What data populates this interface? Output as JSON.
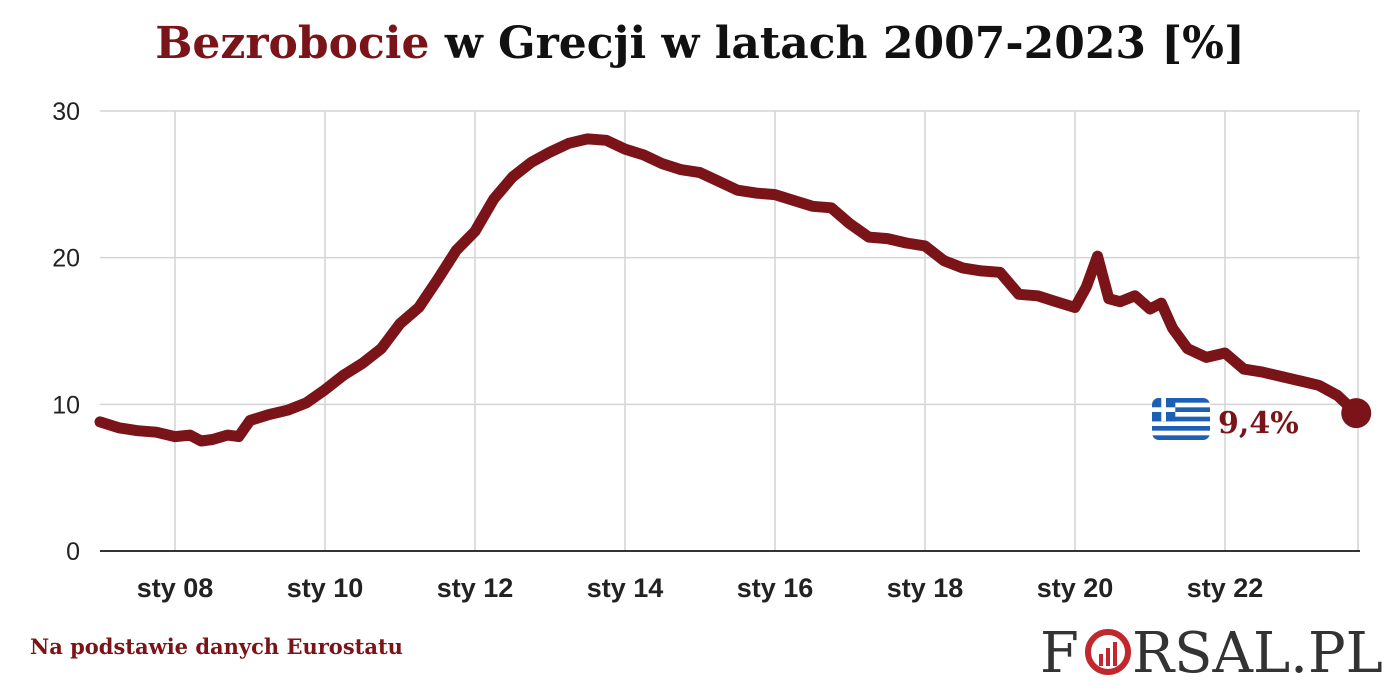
{
  "chart_data": {
    "type": "line",
    "title_accent": "Bezrobocie",
    "title_rest": " w Grecji w latach 2007-2023 [%]",
    "x_tick_labels": [
      "sty 08",
      "sty 10",
      "sty 12",
      "sty 14",
      "sty 16",
      "sty 18",
      "sty 20",
      "sty 22"
    ],
    "x_tick_years": [
      2008,
      2010,
      2012,
      2014,
      2016,
      2018,
      2020,
      2022
    ],
    "y_ticks": [
      0,
      10,
      20,
      30
    ],
    "xlim": [
      2007.0,
      2023.8
    ],
    "ylim": [
      0,
      30
    ],
    "grid": true,
    "line_color": "#7a1418",
    "series": [
      {
        "x": [
          2007.0,
          2007.25,
          2007.5,
          2007.75,
          2008.0,
          2008.2,
          2008.35,
          2008.5,
          2008.7,
          2008.85,
          2009.0,
          2009.25,
          2009.5,
          2009.75,
          2010.0,
          2010.25,
          2010.5,
          2010.75,
          2011.0,
          2011.25,
          2011.5,
          2011.75,
          2012.0,
          2012.25,
          2012.5,
          2012.75,
          2013.0,
          2013.25,
          2013.5,
          2013.75,
          2014.0,
          2014.25,
          2014.5,
          2014.75,
          2015.0,
          2015.25,
          2015.5,
          2015.75,
          2016.0,
          2016.25,
          2016.5,
          2016.75,
          2017.0,
          2017.25,
          2017.5,
          2017.75,
          2018.0,
          2018.25,
          2018.5,
          2018.75,
          2019.0,
          2019.25,
          2019.5,
          2019.75,
          2020.0,
          2020.15,
          2020.3,
          2020.45,
          2020.6,
          2020.8,
          2021.0,
          2021.15,
          2021.3,
          2021.5,
          2021.75,
          2022.0,
          2022.25,
          2022.5,
          2022.75,
          2023.0,
          2023.25,
          2023.5,
          2023.75
        ],
        "y": [
          8.8,
          8.4,
          8.2,
          8.1,
          7.8,
          7.9,
          7.5,
          7.6,
          7.9,
          7.8,
          8.9,
          9.3,
          9.6,
          10.1,
          11.0,
          12.0,
          12.8,
          13.8,
          15.5,
          16.6,
          18.5,
          20.5,
          21.8,
          24.0,
          25.5,
          26.5,
          27.2,
          27.8,
          28.1,
          28.0,
          27.4,
          27.0,
          26.4,
          26.0,
          25.8,
          25.2,
          24.6,
          24.4,
          24.3,
          23.9,
          23.5,
          23.4,
          22.3,
          21.4,
          21.3,
          21.0,
          20.8,
          19.8,
          19.3,
          19.1,
          19.0,
          17.5,
          17.4,
          17.0,
          16.6,
          18.0,
          20.1,
          17.2,
          17.0,
          17.4,
          16.5,
          16.9,
          15.2,
          13.8,
          13.2,
          13.5,
          12.4,
          12.2,
          11.9,
          11.6,
          11.3,
          10.6,
          9.4
        ]
      }
    ],
    "end_label": "9,4%",
    "end_marker_icon": "greece-flag-icon"
  },
  "footer": {
    "source_note": "Na podstawie danych Eurostatu",
    "logo_part1": "F",
    "logo_part2": "RSAL.PL",
    "logo_icon": "forsal-logo-o-chart-icon"
  }
}
